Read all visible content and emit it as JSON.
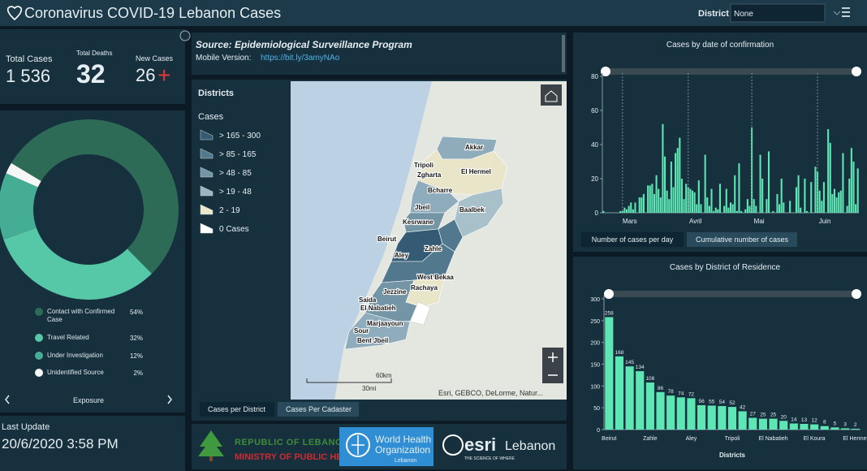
{
  "header": {
    "title": "Coronavirus COVID-19 Lebanon Cases",
    "district_label": "District",
    "district_value": "None"
  },
  "stats": {
    "total_cases_label": "Total Cases",
    "total_cases": "1 536",
    "total_deaths_label": "Total Deaths",
    "total_deaths": "32",
    "new_cases_label": "New Cases",
    "new_cases": "26",
    "new_cases_marker": "+"
  },
  "last_update": {
    "label": "Last Update",
    "value": "20/6/2020 3:58 PM"
  },
  "source": {
    "title": "Source: Epidemiological Surveillance Program",
    "mobile_label": "Mobile Version:",
    "link": "https://bit.ly/3amyNAo"
  },
  "map": {
    "legend_title": "Districts",
    "legend_subtitle": "Cases",
    "legend_items": [
      "> 165 - 300",
      "> 85 - 165",
      "> 48 - 85",
      "> 19 - 48",
      "2 - 19",
      "0 Cases"
    ],
    "labels": [
      "Akkar",
      "Tripoli",
      "Zgharta",
      "El Hermel",
      "Bcharre",
      "Jbeil",
      "Baalbek",
      "Kesrwane",
      "Beirut",
      "Zahle",
      "Aley",
      "West Bekaa",
      "Rachaya",
      "Jezzine",
      "Saida",
      "El Nabatieh",
      "Marjaayoun",
      "Sour",
      "Bent Jbeil"
    ],
    "scale_km": "60km",
    "scale_mi": "30mi",
    "attribution": "Esri, GEBCO, DeLorme, Natur...",
    "tabs": [
      "Cases per District",
      "Cases Per Cadaster"
    ]
  },
  "logos": {
    "moph_line1": "REPUBLIC OF LEBANON",
    "moph_line2": "MINISTRY OF PUBLIC HEALTH",
    "who_line1": "World Health",
    "who_line2": "Organization",
    "who_line3": "Lebanon",
    "esri": "esri",
    "esri_country": "Lebanon",
    "esri_tagline": "THE SCIENCE OF WHERE"
  },
  "chart_data": [
    {
      "type": "pie",
      "categories": [
        "Contact with Confirmed Case",
        "Travel Related",
        "Under Investigation",
        "Unidentified Source"
      ],
      "values": [
        54,
        32,
        12,
        2
      ],
      "value_labels": [
        "54%",
        "32%",
        "12%",
        "2%"
      ],
      "colors": [
        "#2d6b57",
        "#56c8a7",
        "#46ad95",
        "#f4f7f6"
      ],
      "footer": "Exposure"
    },
    {
      "type": "bar",
      "title": "Cases by  date of confirmation",
      "categories": [
        null,
        null,
        null,
        null,
        null,
        null,
        null,
        null,
        null,
        "Mars",
        null,
        null,
        null,
        null,
        null,
        null,
        null,
        null,
        null,
        null,
        null,
        null,
        null,
        null,
        null,
        null,
        null,
        null,
        null,
        null,
        null,
        null,
        null,
        null,
        null,
        null,
        null,
        null,
        null,
        null,
        "Avril",
        null,
        null,
        null,
        null,
        null,
        null,
        null,
        null,
        null,
        null,
        null,
        null,
        null,
        null,
        null,
        null,
        null,
        null,
        null,
        null,
        null,
        null,
        null,
        null,
        null,
        null,
        null,
        null,
        null,
        "Mai",
        null,
        null,
        null,
        null,
        null,
        null,
        null,
        null,
        null,
        null,
        null,
        null,
        null,
        null,
        null,
        null,
        null,
        null,
        null,
        null,
        null,
        null,
        null,
        null,
        null,
        null,
        null,
        null,
        null,
        null,
        "Juin",
        null,
        null,
        null,
        null,
        null,
        null,
        null,
        null,
        null,
        null,
        null,
        null,
        null,
        null,
        null,
        null,
        null,
        null,
        null
      ],
      "values": [
        1,
        0,
        0,
        0,
        0,
        0,
        0,
        0,
        1,
        1,
        3,
        2,
        4,
        6,
        2,
        6,
        0,
        9,
        9,
        11,
        0,
        16,
        16,
        17,
        11,
        22,
        14,
        9,
        52,
        33,
        13,
        8,
        30,
        15,
        35,
        38,
        44,
        20,
        8,
        17,
        15,
        14,
        13,
        12,
        5,
        19,
        5,
        0,
        34,
        9,
        4,
        14,
        1,
        3,
        2,
        17,
        0,
        4,
        14,
        3,
        6,
        5,
        22,
        1,
        29,
        1,
        0,
        2,
        8,
        4,
        50,
        8,
        4,
        0,
        34,
        20,
        0,
        8,
        36,
        0,
        1,
        0,
        11,
        5,
        20,
        6,
        0,
        0,
        7,
        0,
        0,
        15,
        22,
        3,
        0,
        20,
        1,
        0,
        18,
        0,
        27,
        24,
        13,
        7,
        18,
        0,
        49,
        41,
        11,
        14,
        9,
        12,
        13,
        35,
        0,
        4,
        20,
        38,
        30,
        5,
        26
      ],
      "color": "#5ee6b4",
      "ylim": [
        0,
        80
      ],
      "yticks": [
        0,
        20,
        40,
        60,
        80
      ],
      "buttons": [
        "Number of cases per day",
        "Cumulative number of cases"
      ]
    },
    {
      "type": "bar",
      "title": "Cases by District of Residence",
      "categories": [
        "Beirut",
        null,
        null,
        null,
        "Zahle",
        null,
        null,
        null,
        "Aley",
        null,
        null,
        null,
        "Tripoli",
        null,
        null,
        null,
        "El Nabatieh",
        null,
        null,
        null,
        "El Koura",
        null,
        null,
        null,
        "El Hermel"
      ],
      "values": [
        258,
        168,
        145,
        134,
        108,
        86,
        78,
        74,
        72,
        56,
        55,
        54,
        52,
        42,
        27,
        25,
        25,
        20,
        14,
        13,
        12,
        8,
        5,
        3,
        2
      ],
      "color": "#5ee6b4",
      "ylim": [
        0,
        300
      ],
      "yticks": [
        0,
        50,
        100,
        150,
        200,
        250,
        300
      ],
      "xlabel": "Districts"
    }
  ]
}
